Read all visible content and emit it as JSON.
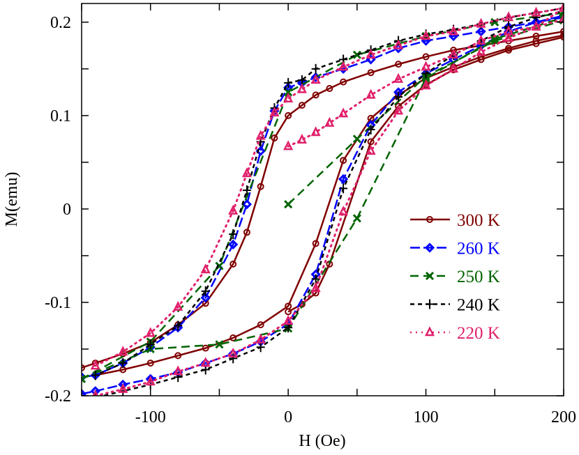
{
  "chart_data": {
    "type": "line",
    "title": "",
    "xlabel": "H (Oe)",
    "ylabel": "M(emu)",
    "xlim": [
      -150,
      200
    ],
    "ylim": [
      -0.2,
      0.22
    ],
    "x_ticks": [
      -100,
      0,
      100,
      200
    ],
    "x_tick_labels": [
      "-100",
      "0",
      "100",
      "200"
    ],
    "y_ticks": [
      -0.2,
      -0.1,
      0,
      0.1,
      0.2
    ],
    "y_tick_labels": [
      "-0.2",
      "-0.1",
      "0",
      "0.1",
      "0.2"
    ],
    "grid": false,
    "legend_position": "right-center",
    "series": [
      {
        "name": "300 K",
        "color": "#800000",
        "dash": "solid",
        "marker": "circle",
        "branches": [
          [
            [
              200,
              0.19
            ],
            [
              180,
              0.185
            ],
            [
              160,
              0.18
            ],
            [
              140,
              0.175
            ],
            [
              120,
              0.17
            ],
            [
              100,
              0.163
            ],
            [
              80,
              0.155
            ],
            [
              60,
              0.146
            ],
            [
              40,
              0.136
            ],
            [
              30,
              0.129
            ],
            [
              20,
              0.122
            ],
            [
              10,
              0.111
            ],
            [
              0,
              0.1
            ],
            [
              -10,
              0.076
            ],
            [
              -20,
              0.024
            ],
            [
              -30,
              -0.025
            ],
            [
              -40,
              -0.059
            ],
            [
              -60,
              -0.101
            ],
            [
              -80,
              -0.124
            ],
            [
              -100,
              -0.143
            ],
            [
              -120,
              -0.155
            ],
            [
              -140,
              -0.165
            ],
            [
              -150,
              -0.17
            ]
          ],
          [
            [
              -140,
              -0.178
            ],
            [
              -120,
              -0.172
            ],
            [
              -100,
              -0.165
            ],
            [
              -80,
              -0.157
            ],
            [
              -60,
              -0.149
            ],
            [
              -40,
              -0.138
            ],
            [
              -20,
              -0.124
            ],
            [
              0,
              -0.104
            ],
            [
              20,
              -0.037
            ],
            [
              40,
              0.052
            ],
            [
              60,
              0.097
            ],
            [
              80,
              0.122
            ],
            [
              100,
              0.14
            ],
            [
              120,
              0.152
            ],
            [
              140,
              0.163
            ],
            [
              160,
              0.172
            ],
            [
              180,
              0.18
            ],
            [
              200,
              0.186
            ]
          ],
          [
            [
              0,
              -0.11
            ],
            [
              10,
              -0.102
            ],
            [
              20,
              -0.09
            ],
            [
              30,
              -0.059
            ],
            [
              60,
              0.072
            ],
            [
              80,
              0.11
            ],
            [
              100,
              0.133
            ],
            [
              120,
              0.149
            ],
            [
              140,
              0.16
            ],
            [
              160,
              0.17
            ],
            [
              180,
              0.177
            ],
            [
              200,
              0.184
            ]
          ]
        ]
      },
      {
        "name": "260 K",
        "color": "#0000ff",
        "dash": "long",
        "marker": "diamond",
        "branches": [
          [
            [
              200,
              0.205
            ],
            [
              180,
              0.2
            ],
            [
              160,
              0.195
            ],
            [
              140,
              0.19
            ],
            [
              120,
              0.185
            ],
            [
              100,
              0.18
            ],
            [
              80,
              0.172
            ],
            [
              60,
              0.16
            ],
            [
              40,
              0.15
            ],
            [
              20,
              0.141
            ],
            [
              10,
              0.135
            ],
            [
              0,
              0.13
            ],
            [
              -10,
              0.105
            ],
            [
              -20,
              0.062
            ],
            [
              -30,
              0.005
            ],
            [
              -40,
              -0.038
            ],
            [
              -60,
              -0.095
            ],
            [
              -80,
              -0.127
            ],
            [
              -100,
              -0.148
            ],
            [
              -120,
              -0.165
            ],
            [
              -140,
              -0.178
            ],
            [
              -150,
              -0.18
            ]
          ],
          [
            [
              -150,
              -0.198
            ],
            [
              -140,
              -0.195
            ],
            [
              -120,
              -0.188
            ],
            [
              -100,
              -0.182
            ],
            [
              -80,
              -0.175
            ],
            [
              -60,
              -0.165
            ],
            [
              -40,
              -0.155
            ],
            [
              -20,
              -0.142
            ],
            [
              0,
              -0.123
            ],
            [
              20,
              -0.07
            ],
            [
              40,
              0.032
            ],
            [
              60,
              0.09
            ],
            [
              80,
              0.125
            ],
            [
              100,
              0.145
            ],
            [
              120,
              0.16
            ],
            [
              140,
              0.175
            ],
            [
              160,
              0.19
            ],
            [
              180,
              0.2
            ],
            [
              200,
              0.207
            ]
          ]
        ]
      },
      {
        "name": "250 K",
        "color": "#006400",
        "dash": "medium",
        "marker": "x",
        "branches": [
          [
            [
              0,
              0.005
            ],
            [
              50,
              0.075
            ],
            [
              100,
              0.142
            ],
            [
              150,
              0.18
            ],
            [
              200,
              0.202
            ]
          ],
          [
            [
              200,
              0.21
            ],
            [
              150,
              0.2
            ],
            [
              100,
              0.185
            ],
            [
              50,
              0.165
            ],
            [
              0,
              0.125
            ],
            [
              -50,
              -0.061
            ],
            [
              -100,
              -0.142
            ],
            [
              -150,
              -0.182
            ]
          ],
          [
            [
              -150,
              -0.182
            ],
            [
              -100,
              -0.15
            ],
            [
              -50,
              -0.145
            ],
            [
              0,
              -0.128
            ],
            [
              50,
              -0.01
            ],
            [
              100,
              0.14
            ],
            [
              150,
              0.182
            ],
            [
              200,
              0.205
            ]
          ]
        ]
      },
      {
        "name": "240 K",
        "color": "#000000",
        "dash": "short",
        "marker": "plus",
        "branches": [
          [
            [
              200,
              0.215
            ],
            [
              180,
              0.21
            ],
            [
              160,
              0.205
            ],
            [
              140,
              0.198
            ],
            [
              120,
              0.192
            ],
            [
              100,
              0.187
            ],
            [
              80,
              0.18
            ],
            [
              60,
              0.17
            ],
            [
              40,
              0.16
            ],
            [
              20,
              0.15
            ],
            [
              10,
              0.138
            ],
            [
              0,
              0.135
            ],
            [
              -10,
              0.108
            ],
            [
              -20,
              0.072
            ],
            [
              -30,
              0.02
            ],
            [
              -40,
              -0.027
            ],
            [
              -60,
              -0.088
            ],
            [
              -80,
              -0.125
            ],
            [
              -100,
              -0.145
            ],
            [
              -120,
              -0.165
            ],
            [
              -140,
              -0.178
            ]
          ],
          [
            [
              -150,
              -0.205
            ],
            [
              -140,
              -0.202
            ],
            [
              -120,
              -0.195
            ],
            [
              -100,
              -0.188
            ],
            [
              -80,
              -0.18
            ],
            [
              -60,
              -0.172
            ],
            [
              -40,
              -0.16
            ],
            [
              -20,
              -0.148
            ],
            [
              0,
              -0.127
            ],
            [
              20,
              -0.075
            ],
            [
              40,
              0.022
            ],
            [
              60,
              0.085
            ],
            [
              80,
              0.12
            ],
            [
              100,
              0.145
            ],
            [
              120,
              0.165
            ],
            [
              140,
              0.18
            ],
            [
              160,
              0.195
            ],
            [
              180,
              0.205
            ],
            [
              200,
              0.212
            ]
          ]
        ]
      },
      {
        "name": "220 K",
        "color": "#e0206b",
        "dash": "dotted",
        "marker": "triangle",
        "branches": [
          [
            [
              0,
              0.067
            ],
            [
              10,
              0.074
            ],
            [
              20,
              0.082
            ],
            [
              30,
              0.092
            ],
            [
              40,
              0.102
            ],
            [
              60,
              0.122
            ],
            [
              80,
              0.139
            ],
            [
              100,
              0.152
            ],
            [
              120,
              0.165
            ],
            [
              140,
              0.18
            ],
            [
              160,
              0.19
            ],
            [
              180,
              0.195
            ],
            [
              200,
              0.215
            ]
          ],
          [
            [
              200,
              0.215
            ],
            [
              180,
              0.21
            ],
            [
              160,
              0.205
            ],
            [
              140,
              0.198
            ],
            [
              120,
              0.19
            ],
            [
              100,
              0.185
            ],
            [
              80,
              0.175
            ],
            [
              60,
              0.165
            ],
            [
              40,
              0.152
            ],
            [
              20,
              0.138
            ],
            [
              10,
              0.128
            ],
            [
              0,
              0.118
            ],
            [
              -10,
              0.103
            ],
            [
              -20,
              0.078
            ],
            [
              -30,
              0.038
            ],
            [
              -40,
              -0.002
            ],
            [
              -60,
              -0.065
            ],
            [
              -80,
              -0.105
            ],
            [
              -100,
              -0.133
            ],
            [
              -120,
              -0.153
            ],
            [
              -140,
              -0.168
            ]
          ],
          [
            [
              -140,
              -0.2
            ],
            [
              -120,
              -0.193
            ],
            [
              -100,
              -0.185
            ],
            [
              -80,
              -0.174
            ],
            [
              -60,
              -0.165
            ],
            [
              -40,
              -0.155
            ],
            [
              -20,
              -0.14
            ],
            [
              0,
              -0.12
            ],
            [
              20,
              -0.085
            ],
            [
              40,
              -0.003
            ],
            [
              60,
              0.062
            ],
            [
              80,
              0.105
            ],
            [
              100,
              0.132
            ],
            [
              120,
              0.15
            ],
            [
              140,
              0.168
            ],
            [
              160,
              0.183
            ],
            [
              180,
              0.195
            ],
            [
              200,
              0.203
            ]
          ]
        ]
      }
    ]
  }
}
